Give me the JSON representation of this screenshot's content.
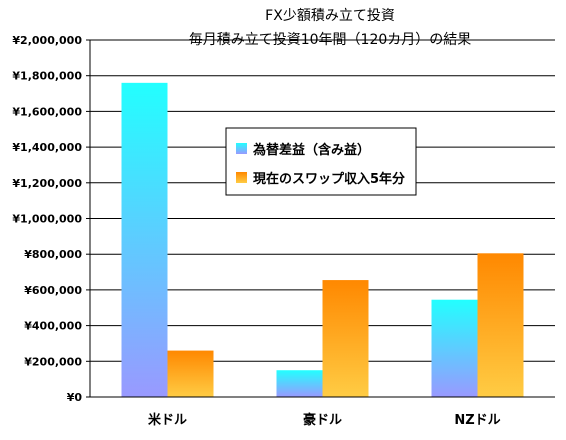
{
  "chart_data": {
    "type": "bar",
    "title": "FX少額積み立て投資",
    "subtitle": "毎月積み立て投資10年間（120カ月）の結果",
    "categories": [
      "米ドル",
      "豪ドル",
      "NZドル"
    ],
    "series": [
      {
        "name": "為替差益（含み益）",
        "values": [
          1760000,
          150000,
          545000
        ],
        "color_top": "#22ffff",
        "color_bottom": "#9999ff"
      },
      {
        "name": "現在のスワップ収入5年分",
        "values": [
          260000,
          655000,
          805000
        ],
        "color_top": "#ff8800",
        "color_bottom": "#ffcc44"
      }
    ],
    "ylim": [
      0,
      2000000
    ],
    "yticks": [
      "¥0",
      "¥200,000",
      "¥400,000",
      "¥600,000",
      "¥800,000",
      "¥1,000,000",
      "¥1,200,000",
      "¥1,400,000",
      "¥1,600,000",
      "¥1,800,000",
      "¥2,000,000"
    ],
    "ytick_values": [
      0,
      200000,
      400000,
      600000,
      800000,
      1000000,
      1200000,
      1400000,
      1600000,
      1800000,
      2000000
    ],
    "grid": "horizontal",
    "legend_position": "center"
  }
}
